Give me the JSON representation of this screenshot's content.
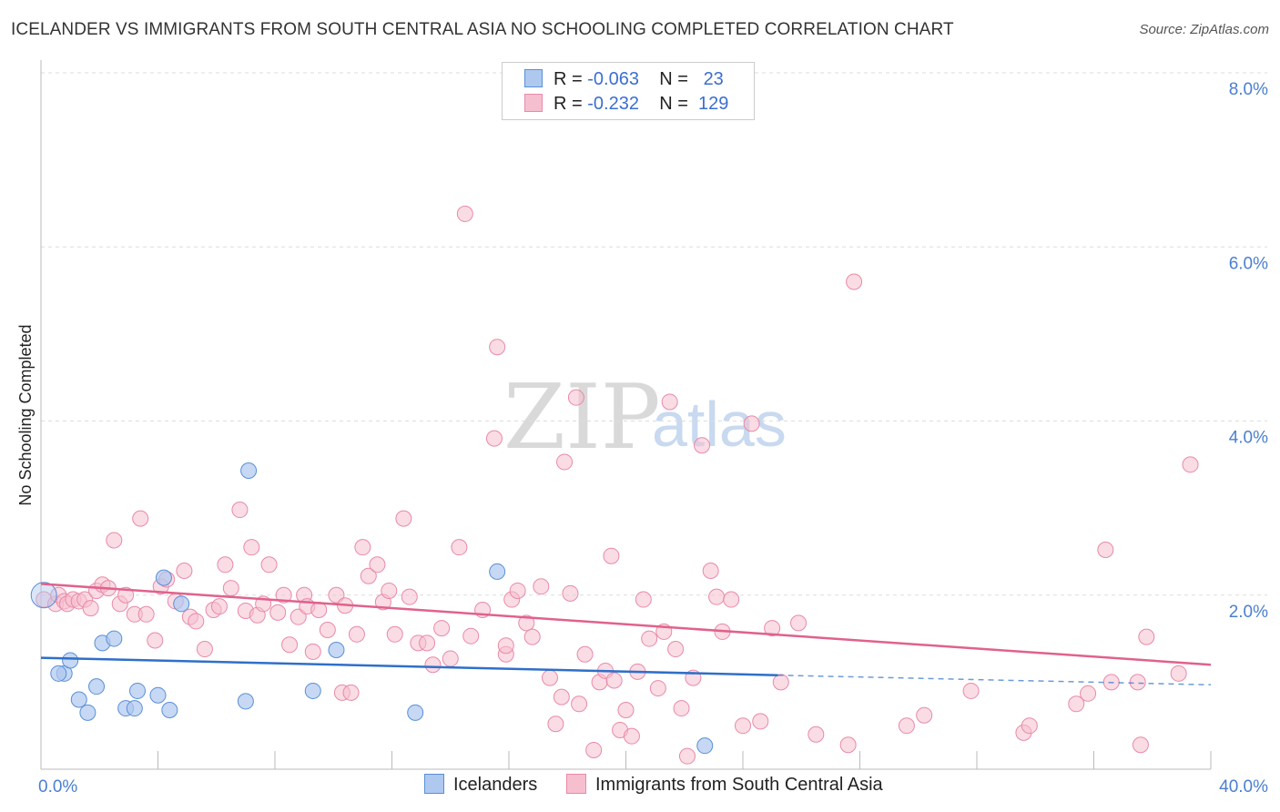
{
  "title": "ICELANDER VS IMMIGRANTS FROM SOUTH CENTRAL ASIA NO SCHOOLING COMPLETED CORRELATION CHART",
  "source": "Source: ZipAtlas.com",
  "watermark": {
    "zip": "ZIP",
    "atlas": "atlas"
  },
  "legend_stats": {
    "icelanders": {
      "r_label": "R =",
      "r_value": "-0.063",
      "n_label": "N =",
      "n_value": "23"
    },
    "immigrants": {
      "r_label": "R =",
      "r_value": "-0.232",
      "n_label": "N =",
      "n_value": "129"
    }
  },
  "bottom_legend": {
    "icelanders": "Icelanders",
    "immigrants": "Immigrants from South Central Asia"
  },
  "colors": {
    "blue_fill": "#aec8ef",
    "blue_stroke": "#5a8fd6",
    "blue_line": "#2f6fc9",
    "pink_fill": "#f6bfd0",
    "pink_stroke": "#e88aa8",
    "pink_line": "#e0628c",
    "grid": "#dddddd",
    "axis_text": "#4a7fd0"
  },
  "chart_data": {
    "type": "scatter",
    "title": "ICELANDER VS IMMIGRANTS FROM SOUTH CENTRAL ASIA NO SCHOOLING COMPLETED CORRELATION CHART",
    "xlabel": "",
    "ylabel": "No Schooling Completed",
    "xlim": [
      0,
      40
    ],
    "ylim": [
      0,
      8
    ],
    "x_tick_labels": [
      "0.0%",
      "40.0%"
    ],
    "y_ticks": [
      2,
      4,
      6,
      8
    ],
    "y_tick_labels": [
      "2.0%",
      "4.0%",
      "6.0%",
      "8.0%"
    ],
    "grid": true,
    "series": [
      {
        "name": "Icelanders",
        "points": [
          [
            0.1,
            2.0
          ],
          [
            0.8,
            1.1
          ],
          [
            0.6,
            1.1
          ],
          [
            1.0,
            1.25
          ],
          [
            1.3,
            0.8
          ],
          [
            1.6,
            0.65
          ],
          [
            1.9,
            0.95
          ],
          [
            2.1,
            1.45
          ],
          [
            2.5,
            1.5
          ],
          [
            2.9,
            0.7
          ],
          [
            3.2,
            0.7
          ],
          [
            3.3,
            0.9
          ],
          [
            4.0,
            0.85
          ],
          [
            4.2,
            2.2
          ],
          [
            4.4,
            0.68
          ],
          [
            4.8,
            1.9
          ],
          [
            7.0,
            0.78
          ],
          [
            7.1,
            3.43
          ],
          [
            9.3,
            0.9
          ],
          [
            10.1,
            1.37
          ],
          [
            12.8,
            0.65
          ],
          [
            15.6,
            2.27
          ],
          [
            22.7,
            0.27
          ]
        ],
        "trend": {
          "x0": 0,
          "y0": 1.28,
          "x1": 25.2,
          "y1": 1.08,
          "dash_x1": 40,
          "dash_y1": 0.97
        }
      },
      {
        "name": "Immigrants from South Central Asia",
        "points": [
          [
            0.1,
            1.95
          ],
          [
            0.5,
            1.9
          ],
          [
            0.6,
            2.0
          ],
          [
            0.8,
            1.93
          ],
          [
            0.9,
            1.9
          ],
          [
            1.1,
            1.95
          ],
          [
            1.3,
            1.93
          ],
          [
            1.5,
            1.95
          ],
          [
            1.7,
            1.85
          ],
          [
            1.9,
            2.05
          ],
          [
            2.1,
            2.12
          ],
          [
            2.3,
            2.08
          ],
          [
            2.5,
            2.63
          ],
          [
            2.7,
            1.9
          ],
          [
            2.9,
            2.0
          ],
          [
            3.2,
            1.78
          ],
          [
            3.4,
            2.88
          ],
          [
            3.6,
            1.78
          ],
          [
            3.9,
            1.48
          ],
          [
            4.1,
            2.1
          ],
          [
            4.3,
            2.18
          ],
          [
            4.6,
            1.93
          ],
          [
            4.9,
            2.28
          ],
          [
            5.1,
            1.75
          ],
          [
            5.3,
            1.7
          ],
          [
            5.6,
            1.38
          ],
          [
            5.9,
            1.83
          ],
          [
            6.1,
            1.87
          ],
          [
            6.3,
            2.35
          ],
          [
            6.5,
            2.08
          ],
          [
            6.8,
            2.98
          ],
          [
            7.0,
            1.82
          ],
          [
            7.2,
            2.55
          ],
          [
            7.4,
            1.77
          ],
          [
            7.6,
            1.9
          ],
          [
            7.8,
            2.35
          ],
          [
            8.1,
            1.8
          ],
          [
            8.3,
            2.0
          ],
          [
            8.5,
            1.43
          ],
          [
            8.8,
            1.75
          ],
          [
            9.0,
            2.0
          ],
          [
            9.1,
            1.87
          ],
          [
            9.3,
            1.35
          ],
          [
            9.5,
            1.83
          ],
          [
            9.8,
            1.6
          ],
          [
            10.1,
            2.0
          ],
          [
            10.3,
            0.88
          ],
          [
            10.4,
            1.88
          ],
          [
            10.6,
            0.88
          ],
          [
            10.8,
            1.55
          ],
          [
            11.0,
            2.55
          ],
          [
            11.2,
            2.22
          ],
          [
            11.5,
            2.35
          ],
          [
            11.7,
            1.92
          ],
          [
            11.9,
            2.05
          ],
          [
            12.1,
            1.55
          ],
          [
            12.4,
            2.88
          ],
          [
            12.6,
            1.98
          ],
          [
            12.9,
            1.45
          ],
          [
            13.2,
            1.45
          ],
          [
            13.4,
            1.2
          ],
          [
            13.7,
            1.62
          ],
          [
            14.0,
            1.27
          ],
          [
            14.3,
            2.55
          ],
          [
            14.5,
            6.38
          ],
          [
            14.7,
            1.53
          ],
          [
            15.1,
            1.83
          ],
          [
            15.5,
            3.8
          ],
          [
            15.6,
            4.85
          ],
          [
            15.9,
            1.32
          ],
          [
            15.9,
            1.42
          ],
          [
            16.1,
            1.95
          ],
          [
            16.3,
            2.05
          ],
          [
            16.6,
            1.68
          ],
          [
            16.8,
            1.52
          ],
          [
            17.1,
            2.1
          ],
          [
            17.4,
            1.05
          ],
          [
            17.6,
            0.52
          ],
          [
            17.8,
            0.83
          ],
          [
            17.9,
            3.53
          ],
          [
            18.1,
            2.02
          ],
          [
            18.3,
            4.27
          ],
          [
            18.4,
            0.75
          ],
          [
            18.6,
            1.32
          ],
          [
            18.9,
            0.22
          ],
          [
            19.1,
            1.0
          ],
          [
            19.3,
            1.13
          ],
          [
            19.5,
            2.45
          ],
          [
            19.6,
            1.02
          ],
          [
            19.8,
            0.45
          ],
          [
            20.0,
            0.68
          ],
          [
            20.2,
            0.38
          ],
          [
            20.4,
            1.12
          ],
          [
            20.6,
            1.95
          ],
          [
            20.8,
            1.5
          ],
          [
            21.1,
            0.93
          ],
          [
            21.3,
            1.58
          ],
          [
            21.5,
            4.22
          ],
          [
            21.7,
            1.38
          ],
          [
            21.9,
            0.7
          ],
          [
            22.1,
            0.15
          ],
          [
            22.3,
            1.05
          ],
          [
            22.6,
            3.72
          ],
          [
            22.9,
            2.28
          ],
          [
            23.1,
            1.98
          ],
          [
            23.3,
            1.58
          ],
          [
            23.6,
            1.95
          ],
          [
            24.0,
            0.5
          ],
          [
            24.3,
            3.97
          ],
          [
            24.6,
            0.55
          ],
          [
            25.0,
            1.62
          ],
          [
            25.3,
            1.0
          ],
          [
            25.9,
            1.68
          ],
          [
            26.5,
            0.4
          ],
          [
            27.6,
            0.28
          ],
          [
            27.8,
            5.6
          ],
          [
            29.6,
            0.5
          ],
          [
            30.2,
            0.62
          ],
          [
            31.8,
            0.9
          ],
          [
            33.6,
            0.42
          ],
          [
            33.8,
            0.5
          ],
          [
            35.4,
            0.75
          ],
          [
            35.8,
            0.87
          ],
          [
            36.4,
            2.52
          ],
          [
            36.6,
            1.0
          ],
          [
            37.5,
            1.0
          ],
          [
            37.6,
            0.28
          ],
          [
            37.8,
            1.52
          ],
          [
            38.9,
            1.1
          ],
          [
            39.3,
            3.5
          ]
        ],
        "trend": {
          "x0": 0,
          "y0": 2.13,
          "x1": 40,
          "y1": 1.2
        }
      }
    ]
  }
}
